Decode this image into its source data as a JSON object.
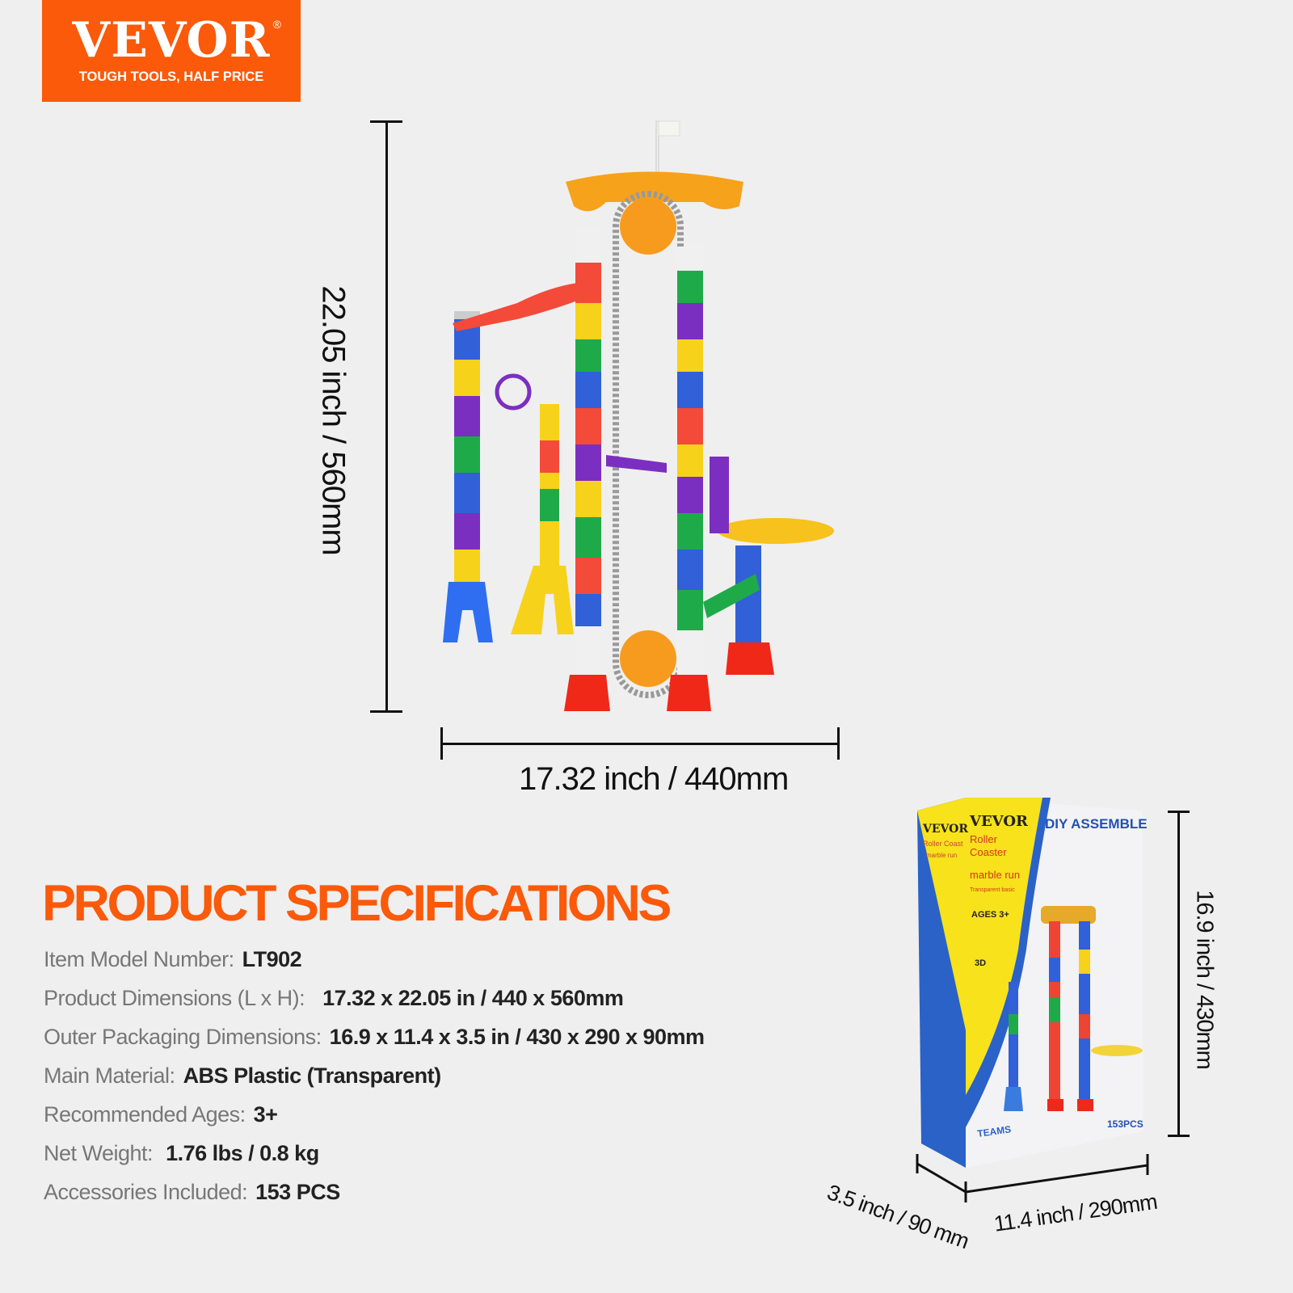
{
  "logo": {
    "brand": "VEVOR",
    "registered": "®",
    "tagline": "TOUGH TOOLS, HALF PRICE",
    "color": "#fa5a0a"
  },
  "dimensions": {
    "height": "22.05 inch /  560mm",
    "width": "17.32 inch /  440mm",
    "box_height": "16.9 inch / 430mm",
    "box_width": "11.4 inch / 290mm",
    "box_depth": "3.5 inch / 90 mm"
  },
  "box": {
    "brand": "VEVOR",
    "title1": "Roller",
    "title2": "Coaster",
    "title3": "marble run",
    "subtitle": "Transparent basic",
    "ages": "AGES 3+",
    "headline": "DIY ASSEMBLE",
    "pieces": "153PCS",
    "series": "TEAMS",
    "model": "3D",
    "side_title": "Roller Coast",
    "side_sub": "marble run"
  },
  "specs": {
    "title": "PRODUCT SPECIFICATIONS",
    "rows": [
      {
        "label": "Item Model Number:",
        "value": "LT902"
      },
      {
        "label": "Product Dimensions (L x H):",
        "value": "17.32 x 22.05 in / 440 x 560mm"
      },
      {
        "label": "Outer Packaging Dimensions:",
        "value": "16.9 x 11.4 x 3.5 in / 430 x 290 x 90mm"
      },
      {
        "label": "Main Material:",
        "value": "ABS Plastic (Transparent)"
      },
      {
        "label": "Recommended Ages:",
        "value": "3+"
      },
      {
        "label": "Net Weight:",
        "value": "1.76 lbs /  0.8 kg"
      },
      {
        "label": "Accessories Included:",
        "value": "153 PCS"
      }
    ]
  }
}
